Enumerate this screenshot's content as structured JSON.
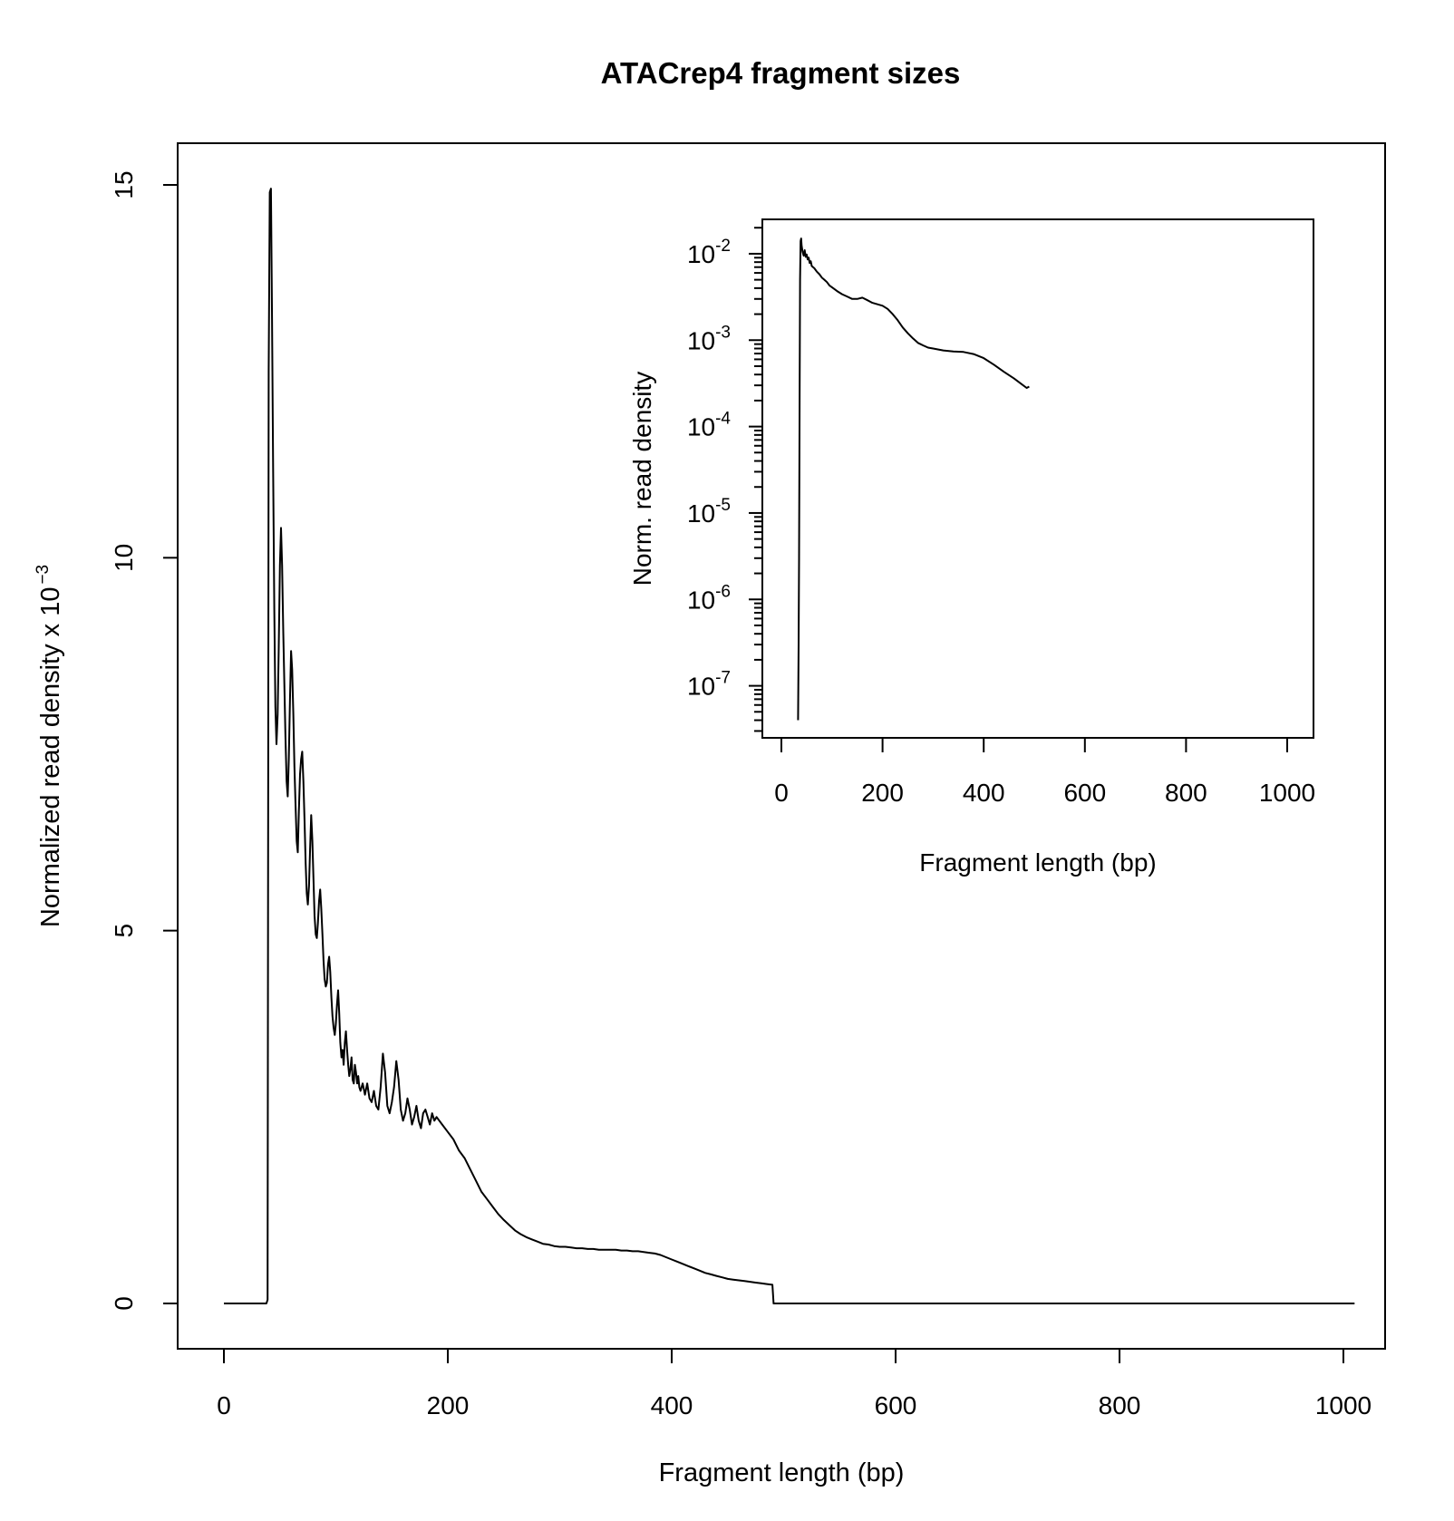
{
  "chart_data": [
    {
      "type": "line",
      "title": "ATACrep4 fragment sizes",
      "xlabel": "Fragment length (bp)",
      "ylabel": "Normalized read density x 10",
      "ylabel_exponent": "−3",
      "xlim": [
        0,
        1010
      ],
      "ylim": [
        0,
        15
      ],
      "x_ticks": [
        0,
        200,
        400,
        600,
        800,
        1000
      ],
      "y_ticks": [
        0,
        5,
        10,
        15
      ],
      "grid": false,
      "legend": "none",
      "series": [
        {
          "color": "#000000",
          "points": [
            [
              0,
              0
            ],
            [
              38,
              0
            ],
            [
              39,
              0.05
            ],
            [
              40,
              12.5
            ],
            [
              41,
              14.9
            ],
            [
              42,
              14.95
            ],
            [
              43,
              13.2
            ],
            [
              44,
              11.2
            ],
            [
              45,
              9.3
            ],
            [
              46,
              8.0
            ],
            [
              47,
              7.5
            ],
            [
              48,
              7.9
            ],
            [
              49,
              8.8
            ],
            [
              50,
              9.9
            ],
            [
              51,
              10.4
            ],
            [
              52,
              9.9
            ],
            [
              53,
              9.0
            ],
            [
              54,
              8.3
            ],
            [
              55,
              7.6
            ],
            [
              56,
              7.0
            ],
            [
              57,
              6.8
            ],
            [
              58,
              7.3
            ],
            [
              59,
              8.1
            ],
            [
              60,
              8.75
            ],
            [
              61,
              8.5
            ],
            [
              62,
              7.9
            ],
            [
              63,
              7.2
            ],
            [
              64,
              6.7
            ],
            [
              65,
              6.2
            ],
            [
              66,
              6.05
            ],
            [
              67,
              6.6
            ],
            [
              68,
              7.1
            ],
            [
              69,
              7.3
            ],
            [
              70,
              7.4
            ],
            [
              71,
              7.0
            ],
            [
              72,
              6.5
            ],
            [
              73,
              5.9
            ],
            [
              74,
              5.5
            ],
            [
              75,
              5.35
            ],
            [
              76,
              5.6
            ],
            [
              77,
              6.1
            ],
            [
              78,
              6.55
            ],
            [
              79,
              6.2
            ],
            [
              80,
              5.7
            ],
            [
              81,
              5.2
            ],
            [
              82,
              4.95
            ],
            [
              83,
              4.9
            ],
            [
              84,
              5.1
            ],
            [
              85,
              5.4
            ],
            [
              86,
              5.55
            ],
            [
              87,
              5.3
            ],
            [
              88,
              4.95
            ],
            [
              89,
              4.6
            ],
            [
              90,
              4.35
            ],
            [
              91,
              4.25
            ],
            [
              92,
              4.3
            ],
            [
              93,
              4.55
            ],
            [
              94,
              4.65
            ],
            [
              95,
              4.45
            ],
            [
              96,
              4.1
            ],
            [
              97,
              3.85
            ],
            [
              98,
              3.7
            ],
            [
              99,
              3.6
            ],
            [
              100,
              3.75
            ],
            [
              101,
              4.0
            ],
            [
              102,
              4.2
            ],
            [
              103,
              3.9
            ],
            [
              104,
              3.5
            ],
            [
              105,
              3.3
            ],
            [
              106,
              3.4
            ],
            [
              107,
              3.2
            ],
            [
              108,
              3.5
            ],
            [
              109,
              3.65
            ],
            [
              110,
              3.4
            ],
            [
              111,
              3.2
            ],
            [
              112,
              3.05
            ],
            [
              113,
              3.15
            ],
            [
              114,
              3.3
            ],
            [
              115,
              3.0
            ],
            [
              116,
              2.95
            ],
            [
              117,
              3.2
            ],
            [
              118,
              3.1
            ],
            [
              119,
              2.95
            ],
            [
              120,
              3.05
            ],
            [
              121,
              2.9
            ],
            [
              122,
              2.85
            ],
            [
              124,
              2.95
            ],
            [
              126,
              2.8
            ],
            [
              128,
              2.95
            ],
            [
              130,
              2.75
            ],
            [
              132,
              2.7
            ],
            [
              134,
              2.85
            ],
            [
              136,
              2.65
            ],
            [
              138,
              2.6
            ],
            [
              140,
              2.9
            ],
            [
              142,
              3.35
            ],
            [
              144,
              3.1
            ],
            [
              146,
              2.65
            ],
            [
              148,
              2.55
            ],
            [
              150,
              2.7
            ],
            [
              152,
              2.9
            ],
            [
              154,
              3.25
            ],
            [
              156,
              3.0
            ],
            [
              158,
              2.6
            ],
            [
              160,
              2.45
            ],
            [
              162,
              2.55
            ],
            [
              164,
              2.75
            ],
            [
              166,
              2.6
            ],
            [
              168,
              2.4
            ],
            [
              170,
              2.5
            ],
            [
              172,
              2.65
            ],
            [
              174,
              2.45
            ],
            [
              176,
              2.35
            ],
            [
              178,
              2.55
            ],
            [
              180,
              2.6
            ],
            [
              182,
              2.5
            ],
            [
              184,
              2.4
            ],
            [
              186,
              2.55
            ],
            [
              188,
              2.45
            ],
            [
              190,
              2.5
            ],
            [
              195,
              2.4
            ],
            [
              200,
              2.3
            ],
            [
              205,
              2.2
            ],
            [
              210,
              2.05
            ],
            [
              215,
              1.95
            ],
            [
              220,
              1.8
            ],
            [
              225,
              1.65
            ],
            [
              230,
              1.5
            ],
            [
              235,
              1.4
            ],
            [
              240,
              1.3
            ],
            [
              245,
              1.2
            ],
            [
              250,
              1.12
            ],
            [
              255,
              1.05
            ],
            [
              260,
              0.98
            ],
            [
              265,
              0.93
            ],
            [
              270,
              0.89
            ],
            [
              275,
              0.86
            ],
            [
              280,
              0.83
            ],
            [
              285,
              0.8
            ],
            [
              290,
              0.79
            ],
            [
              295,
              0.77
            ],
            [
              300,
              0.76
            ],
            [
              305,
              0.76
            ],
            [
              310,
              0.75
            ],
            [
              315,
              0.74
            ],
            [
              320,
              0.74
            ],
            [
              325,
              0.73
            ],
            [
              330,
              0.73
            ],
            [
              335,
              0.72
            ],
            [
              340,
              0.72
            ],
            [
              345,
              0.72
            ],
            [
              350,
              0.72
            ],
            [
              355,
              0.71
            ],
            [
              360,
              0.71
            ],
            [
              365,
              0.7
            ],
            [
              370,
              0.7
            ],
            [
              375,
              0.69
            ],
            [
              380,
              0.68
            ],
            [
              385,
              0.67
            ],
            [
              390,
              0.65
            ],
            [
              395,
              0.62
            ],
            [
              400,
              0.59
            ],
            [
              405,
              0.56
            ],
            [
              410,
              0.53
            ],
            [
              415,
              0.5
            ],
            [
              420,
              0.47
            ],
            [
              425,
              0.44
            ],
            [
              430,
              0.41
            ],
            [
              435,
              0.39
            ],
            [
              440,
              0.37
            ],
            [
              445,
              0.35
            ],
            [
              450,
              0.33
            ],
            [
              455,
              0.32
            ],
            [
              460,
              0.31
            ],
            [
              465,
              0.3
            ],
            [
              470,
              0.29
            ],
            [
              475,
              0.28
            ],
            [
              480,
              0.27
            ],
            [
              485,
              0.26
            ],
            [
              490,
              0.25
            ],
            [
              491,
              0.0
            ],
            [
              1010,
              0.0
            ]
          ]
        }
      ]
    },
    {
      "type": "line",
      "title": "",
      "xlabel": "Fragment length (bp)",
      "ylabel": "Norm. read density",
      "y_scale": "log10",
      "xlim": [
        0,
        1050
      ],
      "ylim": [
        2.5e-08,
        0.025
      ],
      "x_ticks": [
        0,
        200,
        400,
        600,
        800,
        1000
      ],
      "y_tick_exponents": [
        -2,
        -3,
        -4,
        -5,
        -6,
        -7
      ],
      "y_tick_base": "10",
      "grid": false,
      "legend": "none",
      "series": [
        {
          "color": "#000000",
          "points": [
            [
              33,
              4e-08
            ],
            [
              34,
              3e-07
            ],
            [
              35,
              3e-06
            ],
            [
              36,
              0.0002
            ],
            [
              37,
              0.005
            ],
            [
              38,
              0.014
            ],
            [
              39,
              0.015
            ],
            [
              40,
              0.0125
            ],
            [
              42,
              0.0105
            ],
            [
              44,
              0.0095
            ],
            [
              46,
              0.011
            ],
            [
              48,
              0.0092
            ],
            [
              50,
              0.0098
            ],
            [
              52,
              0.0086
            ],
            [
              54,
              0.009
            ],
            [
              56,
              0.0078
            ],
            [
              58,
              0.0082
            ],
            [
              60,
              0.0072
            ],
            [
              65,
              0.0068
            ],
            [
              70,
              0.0062
            ],
            [
              75,
              0.0058
            ],
            [
              80,
              0.0053
            ],
            [
              85,
              0.005
            ],
            [
              90,
              0.0047
            ],
            [
              95,
              0.0043
            ],
            [
              100,
              0.0041
            ],
            [
              110,
              0.0037
            ],
            [
              120,
              0.0034
            ],
            [
              130,
              0.0032
            ],
            [
              140,
              0.003
            ],
            [
              150,
              0.003
            ],
            [
              160,
              0.0031
            ],
            [
              170,
              0.0029
            ],
            [
              180,
              0.0027
            ],
            [
              190,
              0.0026
            ],
            [
              200,
              0.0025
            ],
            [
              210,
              0.0023
            ],
            [
              220,
              0.002
            ],
            [
              230,
              0.0017
            ],
            [
              240,
              0.0014
            ],
            [
              250,
              0.0012
            ],
            [
              260,
              0.00105
            ],
            [
              270,
              0.00093
            ],
            [
              280,
              0.00087
            ],
            [
              290,
              0.00082
            ],
            [
              300,
              0.0008
            ],
            [
              320,
              0.00076
            ],
            [
              340,
              0.00074
            ],
            [
              360,
              0.00073
            ],
            [
              380,
              0.00069
            ],
            [
              400,
              0.00062
            ],
            [
              420,
              0.00052
            ],
            [
              440,
              0.00043
            ],
            [
              460,
              0.00036
            ],
            [
              475,
              0.00031
            ],
            [
              485,
              0.00028
            ],
            [
              490,
              0.00029
            ]
          ]
        }
      ]
    }
  ]
}
